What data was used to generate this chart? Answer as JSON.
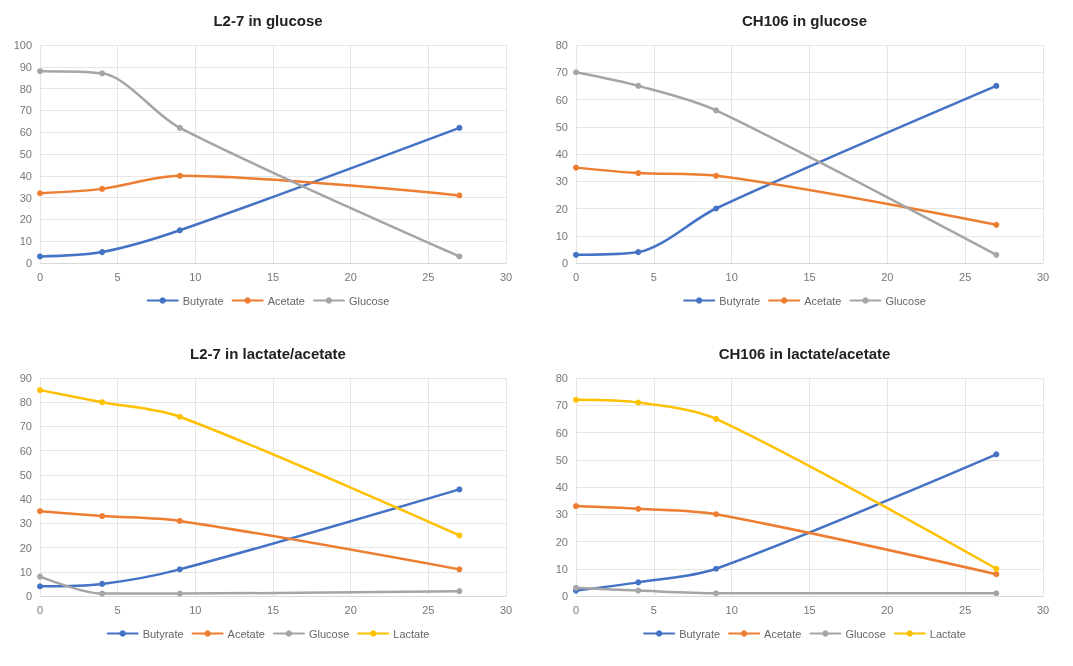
{
  "chart_data": [
    {
      "type": "line",
      "title": "L2-7 in glucose",
      "x": [
        0,
        4,
        9,
        27
      ],
      "series": [
        {
          "name": "Butyrate",
          "color": "#4472c4",
          "values": [
            3,
            5,
            15,
            62
          ]
        },
        {
          "name": "Acetate",
          "color": "#ed7d31",
          "values": [
            32,
            34,
            40,
            31
          ]
        },
        {
          "name": "Glucose",
          "color": "#a5a5a5",
          "values": [
            88,
            87,
            62,
            3
          ]
        }
      ],
      "xlim": [
        0,
        30
      ],
      "xticks": [
        0,
        5,
        10,
        15,
        20,
        25,
        30
      ],
      "ylim": [
        0,
        100
      ],
      "yticks": [
        0,
        10,
        20,
        30,
        40,
        50,
        60,
        70,
        80,
        90,
        100
      ],
      "grid": true,
      "legend": "bottom",
      "marker": "circle",
      "line_style": "solid"
    },
    {
      "type": "line",
      "title": "CH106 in glucose",
      "x": [
        0,
        4,
        9,
        27
      ],
      "series": [
        {
          "name": "Butyrate",
          "color": "#4472c4",
          "values": [
            3,
            4,
            20,
            65
          ]
        },
        {
          "name": "Acetate",
          "color": "#ed7d31",
          "values": [
            35,
            33,
            32,
            14
          ]
        },
        {
          "name": "Glucose",
          "color": "#a5a5a5",
          "values": [
            70,
            65,
            56,
            3
          ]
        }
      ],
      "xlim": [
        0,
        30
      ],
      "xticks": [
        0,
        5,
        10,
        15,
        20,
        25,
        30
      ],
      "ylim": [
        0,
        80
      ],
      "yticks": [
        0,
        10,
        20,
        30,
        40,
        50,
        60,
        70,
        80
      ],
      "grid": true,
      "legend": "bottom",
      "marker": "circle",
      "line_style": "solid"
    },
    {
      "type": "line",
      "title": "L2-7 in lactate/acetate",
      "x": [
        0,
        4,
        9,
        27
      ],
      "series": [
        {
          "name": "Butyrate",
          "color": "#4472c4",
          "values": [
            4,
            5,
            11,
            44
          ]
        },
        {
          "name": "Acetate",
          "color": "#ed7d31",
          "values": [
            35,
            33,
            31,
            11
          ]
        },
        {
          "name": "Glucose",
          "color": "#a5a5a5",
          "values": [
            8,
            1,
            1,
            2
          ]
        },
        {
          "name": "Lactate",
          "color": "#ffc000",
          "values": [
            85,
            80,
            74,
            25
          ]
        }
      ],
      "xlim": [
        0,
        30
      ],
      "xticks": [
        0,
        5,
        10,
        15,
        20,
        25,
        30
      ],
      "ylim": [
        0,
        90
      ],
      "yticks": [
        0,
        10,
        20,
        30,
        40,
        50,
        60,
        70,
        80,
        90
      ],
      "grid": true,
      "legend": "bottom",
      "marker": "circle",
      "line_style": "solid"
    },
    {
      "type": "line",
      "title": "CH106 in lactate/acetate",
      "x": [
        0,
        4,
        9,
        27
      ],
      "series": [
        {
          "name": "Butyrate",
          "color": "#4472c4",
          "values": [
            2,
            5,
            10,
            52
          ]
        },
        {
          "name": "Acetate",
          "color": "#ed7d31",
          "values": [
            33,
            32,
            30,
            8
          ]
        },
        {
          "name": "Glucose",
          "color": "#a5a5a5",
          "values": [
            3,
            2,
            1,
            1
          ]
        },
        {
          "name": "Lactate",
          "color": "#ffc000",
          "values": [
            72,
            71,
            65,
            10
          ]
        }
      ],
      "xlim": [
        0,
        30
      ],
      "xticks": [
        0,
        5,
        10,
        15,
        20,
        25,
        30
      ],
      "ylim": [
        0,
        80
      ],
      "yticks": [
        0,
        10,
        20,
        30,
        40,
        50,
        60,
        70,
        80
      ],
      "grid": true,
      "legend": "bottom",
      "marker": "circle",
      "line_style": "solid"
    }
  ]
}
